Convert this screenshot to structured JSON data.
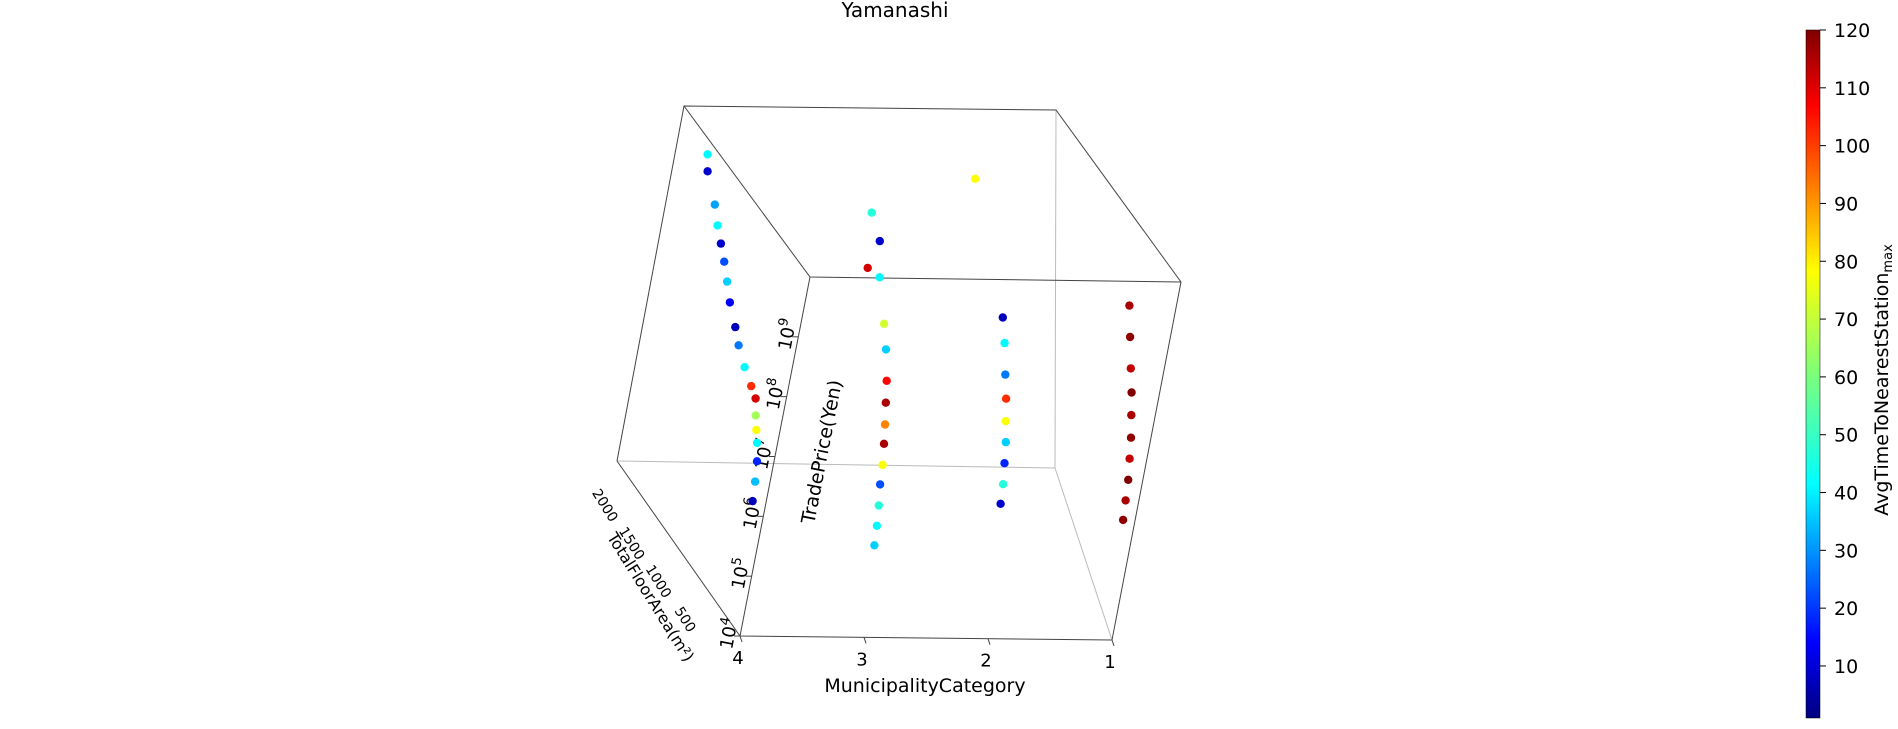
{
  "chart_data": {
    "type": "scatter",
    "projection": "3d",
    "title": "Yamanashi",
    "xlabel": "MunicipalityCategory",
    "ylabel": "TotalFloorArea(m²)",
    "zlabel": "TradePrice(Yen)",
    "z_scale": "log",
    "x_ticks": [
      "4",
      "3",
      "2",
      "1"
    ],
    "y_ticks": [
      "500",
      "1000",
      "1500",
      "2000"
    ],
    "z_tick_exponents": [
      "4",
      "5",
      "6",
      "7",
      "8",
      "9"
    ],
    "colorbar": {
      "label": "AvgTimeToNearestStation",
      "label_subscript": "max",
      "colormap": "jet",
      "range": [
        1,
        120
      ],
      "ticks": [
        "10",
        "20",
        "30",
        "40",
        "50",
        "60",
        "70",
        "80",
        "90",
        "100",
        "110",
        "120"
      ]
    },
    "series": [
      {
        "x": 4,
        "points": [
          {
            "area": 1850,
            "price": 5000000000.0,
            "time": 45
          },
          {
            "area": 1800,
            "price": 3000000000.0,
            "time": 10
          },
          {
            "area": 1600,
            "price": 1500000000.0,
            "time": 35
          },
          {
            "area": 1500,
            "price": 900000000.0,
            "time": 45
          },
          {
            "area": 1400,
            "price": 600000000.0,
            "time": 10
          },
          {
            "area": 1300,
            "price": 400000000.0,
            "time": 25
          },
          {
            "area": 1200,
            "price": 250000000.0,
            "time": 40
          },
          {
            "area": 1100,
            "price": 150000000.0,
            "time": 15
          },
          {
            "area": 950,
            "price": 90000000.0,
            "time": 8
          },
          {
            "area": 850,
            "price": 60000000.0,
            "time": 30
          },
          {
            "area": 700,
            "price": 40000000.0,
            "time": 45
          },
          {
            "area": 550,
            "price": 30000000.0,
            "time": 100
          },
          {
            "area": 450,
            "price": 25000000.0,
            "time": 110
          },
          {
            "area": 400,
            "price": 15000000.0,
            "time": 65
          },
          {
            "area": 350,
            "price": 10000000.0,
            "time": 75
          },
          {
            "area": 300,
            "price": 7000000.0,
            "time": 45
          },
          {
            "area": 250,
            "price": 4000000.0,
            "time": 20
          },
          {
            "area": 220,
            "price": 2000000.0,
            "time": 38
          },
          {
            "area": 200,
            "price": 1000000.0,
            "time": 8
          }
        ]
      },
      {
        "x": 3,
        "points": [
          {
            "area": 900,
            "price": 3000000000.0,
            "time": 10
          },
          {
            "area": 800,
            "price": 1000000000.0,
            "time": 45
          },
          {
            "area": 600,
            "price": 300000000.0,
            "time": 70
          },
          {
            "area": 500,
            "price": 150000000.0,
            "time": 40
          },
          {
            "area": 400,
            "price": 60000000.0,
            "time": 105
          },
          {
            "area": 350,
            "price": 30000000.0,
            "time": 115
          },
          {
            "area": 300,
            "price": 15000000.0,
            "time": 90
          },
          {
            "area": 260,
            "price": 8000000.0,
            "time": 115
          },
          {
            "area": 220,
            "price": 4000000.0,
            "time": 75
          },
          {
            "area": 200,
            "price": 2000000.0,
            "time": 25
          },
          {
            "area": 160,
            "price": 1000000.0,
            "time": 50
          },
          {
            "area": 130,
            "price": 500000.0,
            "time": 45
          },
          {
            "area": 110,
            "price": 250000.0,
            "time": 40
          },
          {
            "area": 1100,
            "price": 5000000000.0,
            "time": 50
          },
          {
            "area": 1000,
            "price": 800000000.0,
            "time": 110
          }
        ]
      },
      {
        "x": 2,
        "points": [
          {
            "area": 700,
            "price": 300000000.0,
            "time": 8
          },
          {
            "area": 600,
            "price": 150000000.0,
            "time": 45
          },
          {
            "area": 500,
            "price": 60000000.0,
            "time": 30
          },
          {
            "area": 420,
            "price": 30000000.0,
            "time": 100
          },
          {
            "area": 360,
            "price": 15000000.0,
            "time": 75
          },
          {
            "area": 300,
            "price": 8000000.0,
            "time": 40
          },
          {
            "area": 260,
            "price": 4000000.0,
            "time": 20
          },
          {
            "area": 220,
            "price": 2000000.0,
            "time": 50
          },
          {
            "area": 200,
            "price": 1000000.0,
            "time": 10
          },
          {
            "area": 1500,
            "price": 6000000000.0,
            "time": 75
          }
        ]
      },
      {
        "x": 1,
        "points": [
          {
            "area": 700,
            "price": 500000000.0,
            "time": 115
          },
          {
            "area": 600,
            "price": 200000000.0,
            "time": 118
          },
          {
            "area": 500,
            "price": 80000000.0,
            "time": 112
          },
          {
            "area": 420,
            "price": 40000000.0,
            "time": 120
          },
          {
            "area": 360,
            "price": 20000000.0,
            "time": 115
          },
          {
            "area": 300,
            "price": 10000000.0,
            "time": 118
          },
          {
            "area": 260,
            "price": 5000000.0,
            "time": 112
          },
          {
            "area": 220,
            "price": 2500000.0,
            "time": 120
          },
          {
            "area": 200,
            "price": 1200000.0,
            "time": 115
          },
          {
            "area": 180,
            "price": 600000.0,
            "time": 118
          }
        ]
      }
    ]
  }
}
